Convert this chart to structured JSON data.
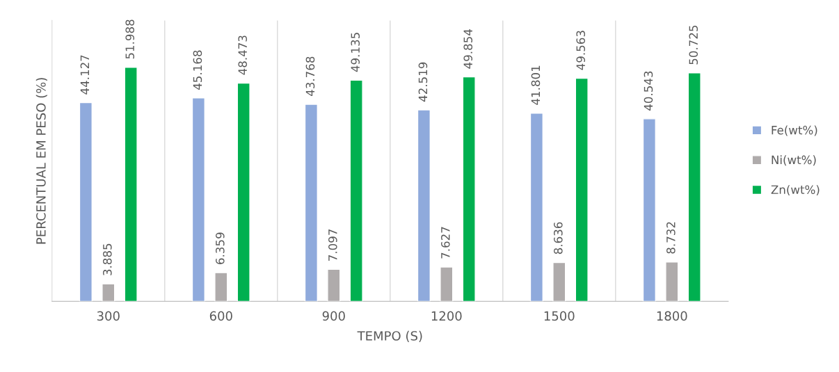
{
  "chart_data": {
    "type": "bar",
    "xlabel": "TEMPO (S)",
    "ylabel": "PERCENTUAL EM PESO (%)",
    "categories": [
      "300",
      "600",
      "900",
      "1200",
      "1500",
      "1800"
    ],
    "series": [
      {
        "name": "Fe(wt%)",
        "color": "#8faadc",
        "values": [
          44.127,
          45.168,
          43.768,
          42.519,
          41.801,
          40.543
        ]
      },
      {
        "name": "Ni(wt%)",
        "color": "#afabab",
        "values": [
          3.885,
          6.359,
          7.097,
          7.627,
          8.636,
          8.732
        ]
      },
      {
        "name": "Zn(wt%)",
        "color": "#00b050",
        "values": [
          51.988,
          48.473,
          49.135,
          49.854,
          49.563,
          50.725
        ]
      }
    ],
    "data_labels": true,
    "grid": "x",
    "legend": "right",
    "tick_labels": "x"
  }
}
